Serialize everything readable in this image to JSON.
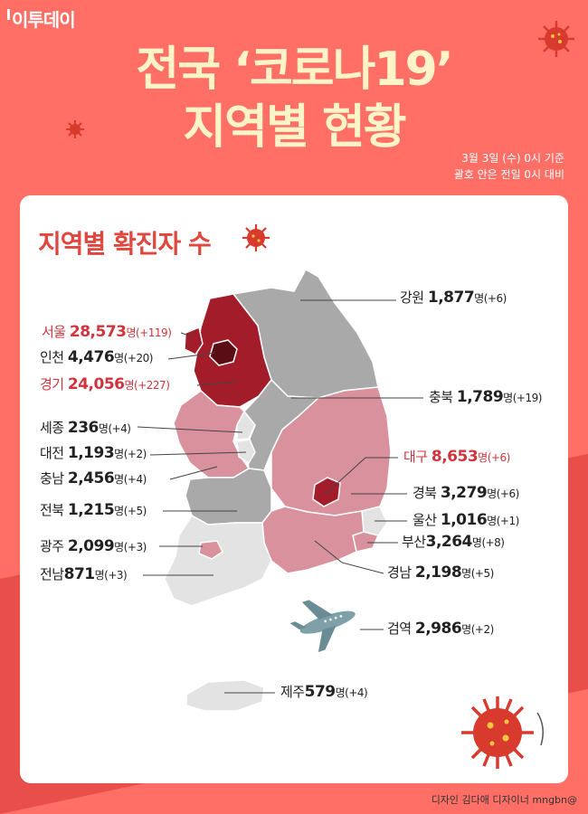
{
  "brand": "이투데이",
  "title": {
    "line1": "전국 ‘코로나19’",
    "line2": "지역별 현황"
  },
  "basis": {
    "line1": "3월 3일 (수) 0시 기준",
    "line2": "괄호 안은 전일 0시 대비"
  },
  "section_title": "지역별 확진자 수",
  "unit": "명",
  "regions": [
    {
      "name": "강원",
      "count": "1,877",
      "delta": "(+6)"
    },
    {
      "name": "서울",
      "count": "28,573",
      "delta": "(+119)"
    },
    {
      "name": "인천",
      "count": "4,476",
      "delta": "(+20)"
    },
    {
      "name": "경기",
      "count": "24,056",
      "delta": "(+227)"
    },
    {
      "name": "충북",
      "count": "1,789",
      "delta": "(+19)"
    },
    {
      "name": "세종",
      "count": "236",
      "delta": "(+4)"
    },
    {
      "name": "대전",
      "count": "1,193",
      "delta": "(+2)"
    },
    {
      "name": "충남",
      "count": "2,456",
      "delta": "(+4)"
    },
    {
      "name": "대구",
      "count": "8,653",
      "delta": "(+6)"
    },
    {
      "name": "경북",
      "count": "3,279",
      "delta": "(+6)"
    },
    {
      "name": "전북",
      "count": "1,215",
      "delta": "(+5)"
    },
    {
      "name": "울산",
      "count": "1,016",
      "delta": "(+1)"
    },
    {
      "name": "광주",
      "count": "2,099",
      "delta": "(+3)"
    },
    {
      "name": "부산",
      "count": "3,264",
      "delta": "(+8)"
    },
    {
      "name": "경남",
      "count": "2,198",
      "delta": "(+5)"
    },
    {
      "name": "전남",
      "count": "871",
      "delta": "(+3)"
    },
    {
      "name": "검역",
      "count": "2,986",
      "delta": "(+2)"
    },
    {
      "name": "제주",
      "count": "579",
      "delta": "(+4)"
    }
  ],
  "credit": "디자인 김다애 디자이너 mngbn@",
  "colors": {
    "background": "#ff6f66",
    "accent_red": "#d0343c",
    "title_cream": "#fff3c8",
    "level_highest": "#a31c2a",
    "level_high": "#d9919d",
    "level_mid": "#a9a9a9",
    "level_low": "#e3e3e3"
  }
}
